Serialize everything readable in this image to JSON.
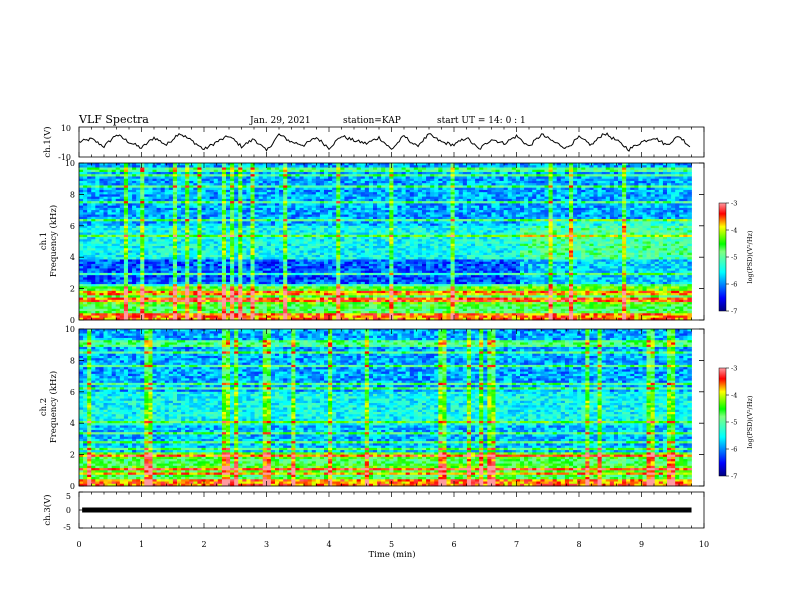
{
  "header": {
    "title": "VLF Spectra",
    "date": "Jan. 29, 2021",
    "station": "station=KAP",
    "start": "start UT =  14: 0  : 1"
  },
  "chart_data": [
    {
      "type": "line",
      "name": "ch1-waveform",
      "ylabel": "ch.1(V)",
      "ylim": [
        -10,
        10
      ],
      "yticks": [
        "10",
        "-10"
      ],
      "xlim": [
        0,
        10
      ],
      "x": [
        0,
        0.2,
        0.4,
        0.6,
        0.8,
        1.0,
        1.2,
        1.4,
        1.6,
        1.8,
        2.0,
        2.2,
        2.4,
        2.6,
        2.8,
        3.0,
        3.2,
        3.4,
        3.6,
        3.8,
        4.0,
        4.2,
        4.4,
        4.6,
        4.8,
        5.0,
        5.2,
        5.4,
        5.6,
        5.8,
        6.0,
        6.2,
        6.4,
        6.6,
        6.8,
        7.0,
        7.2,
        7.4,
        7.6,
        7.8,
        8.0,
        8.2,
        8.4,
        8.6,
        8.8,
        9.0,
        9.2,
        9.4,
        9.6,
        9.8
      ],
      "y": [
        0,
        2,
        -3,
        5,
        0,
        -4,
        3,
        -2,
        6,
        1,
        -5,
        0,
        4,
        -3,
        2,
        -6,
        5,
        0,
        -2,
        3,
        -4,
        4,
        1,
        -1,
        3,
        -5,
        4,
        -3,
        5,
        0,
        -2,
        3,
        -5,
        2,
        -1,
        4,
        -3,
        5,
        0,
        -4,
        3,
        -2,
        6,
        1,
        -5,
        0,
        3,
        -2,
        4,
        -4
      ]
    },
    {
      "type": "heatmap",
      "name": "ch1-spectrogram",
      "ylabel": "ch.1\nFrequency (kHz)",
      "xlim": [
        0,
        10
      ],
      "ylim": [
        0,
        10
      ],
      "yticks": [
        "0",
        "2",
        "4",
        "6",
        "8",
        "10"
      ],
      "colorbar": {
        "label": "log(PSD)(V²/Hz)",
        "range": [
          -7,
          -3
        ],
        "ticks": [
          "-3",
          "-4",
          "-5",
          "-6",
          "-7"
        ]
      },
      "data_end_min": 9.8
    },
    {
      "type": "heatmap",
      "name": "ch2-spectrogram",
      "ylabel": "ch.2\nFrequency (kHz)",
      "xlim": [
        0,
        10
      ],
      "ylim": [
        0,
        10
      ],
      "yticks": [
        "0",
        "2",
        "4",
        "6",
        "8",
        "10"
      ],
      "colorbar": {
        "label": "log(PSD)(V²/Hz)",
        "range": [
          -7,
          -3
        ],
        "ticks": [
          "-3",
          "-4",
          "-5",
          "-6",
          "-7"
        ]
      },
      "data_end_min": 9.8
    },
    {
      "type": "line",
      "name": "ch3-waveform",
      "ylabel": "ch.3(V)",
      "ylim": [
        -5,
        5
      ],
      "yticks": [
        "5",
        "0",
        "-5"
      ],
      "xlim": [
        0,
        10
      ],
      "level": 0,
      "xlabel": "Time (min)",
      "xticks": [
        "0",
        "1",
        "2",
        "3",
        "4",
        "5",
        "6",
        "7",
        "8",
        "9",
        "10"
      ]
    }
  ]
}
